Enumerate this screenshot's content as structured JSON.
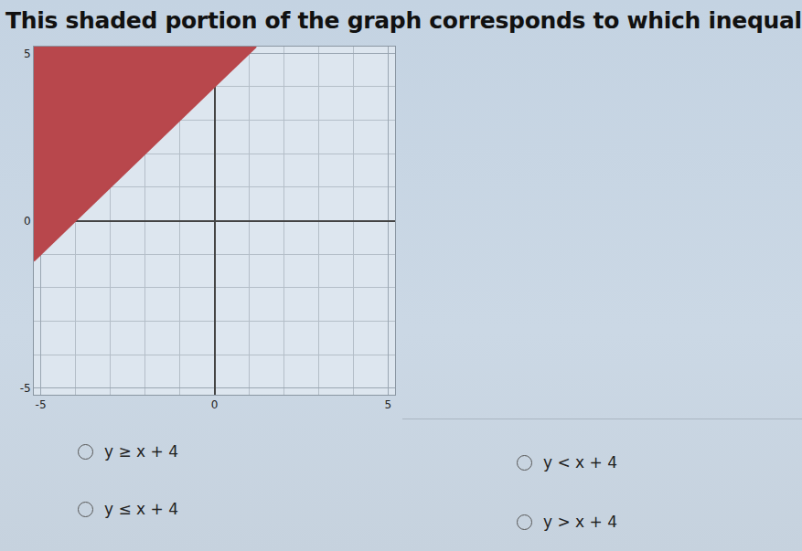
{
  "question": "This shaded portion of the graph corresponds to which inequality?",
  "chart_data": {
    "type": "area",
    "x": [
      -5.2,
      1.2
    ],
    "values": [
      -1.2,
      5.2
    ],
    "color": "#b8474c",
    "line_style": "solid",
    "xlim": [
      -5.2,
      5.2
    ],
    "ylim": [
      -5.2,
      5.2
    ],
    "xticks": [
      -5,
      0,
      5
    ],
    "yticks": [
      -5,
      0,
      5
    ],
    "grid": true
  },
  "options": [
    "y ≥ x + 4",
    "y < x + 4",
    "y ≤ x + 4",
    "y > x + 4"
  ]
}
